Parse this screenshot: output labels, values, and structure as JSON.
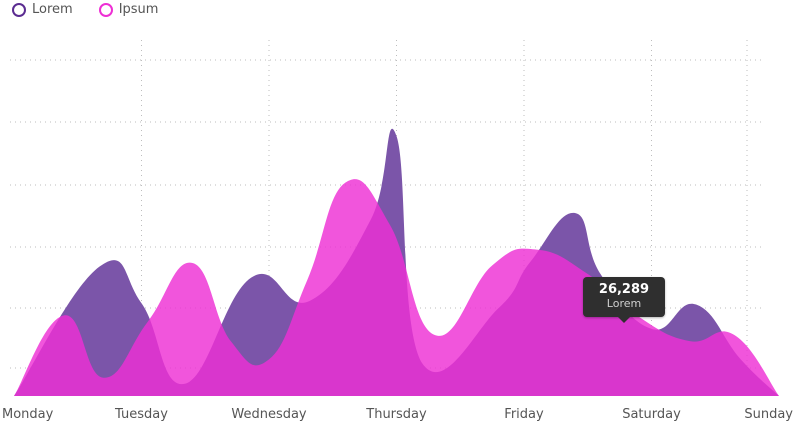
{
  "legend": {
    "items": [
      {
        "label": "Lorem",
        "color": "#5b2c91"
      },
      {
        "label": "Ipsum",
        "color": "#ee2fd4"
      }
    ]
  },
  "tooltip": {
    "value": "26,289",
    "label": "Lorem"
  },
  "chart_data": {
    "type": "area",
    "categories": [
      "Monday",
      "Tuesday",
      "Wednesday",
      "Thursday",
      "Friday",
      "Saturday",
      "Sunday"
    ],
    "grid": "dotted",
    "legend_position": "top-left",
    "series": [
      {
        "name": "Lorem",
        "color": "#7b55a9",
        "x": [
          0,
          0.67,
          1,
          1.34,
          1.86,
          2.32,
          2.8,
          3,
          3.2,
          3.8,
          4.05,
          4.4,
          4.6,
          5,
          5.35,
          5.7,
          6
        ],
        "values": [
          0,
          10.6,
          7.6,
          1.0,
          9.7,
          7.8,
          14.5,
          21.3,
          2.7,
          7.2,
          11.0,
          15.0,
          10.0,
          5.5,
          7.5,
          3.0,
          0
        ]
      },
      {
        "name": "Ipsum",
        "color": "#ee2fd4",
        "x": [
          0,
          0.39,
          0.7,
          1.05,
          1.4,
          1.7,
          2,
          2.3,
          2.6,
          2.95,
          3.3,
          3.75,
          4.1,
          4.5,
          4.9,
          5.3,
          5.65,
          6
        ],
        "values": [
          0,
          6.6,
          1.5,
          6.1,
          10.9,
          4.5,
          3.0,
          9.5,
          17.5,
          14.0,
          5.0,
          10.7,
          12.0,
          10.0,
          6.5,
          4.5,
          5.0,
          0
        ]
      }
    ]
  }
}
